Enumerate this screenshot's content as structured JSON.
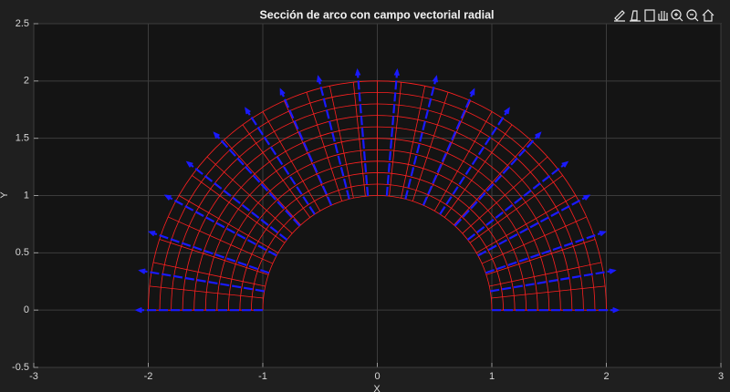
{
  "chart_data": {
    "type": "polar-mesh-quiver",
    "title": "Sección de arco con campo vectorial radial",
    "xlabel": "X",
    "ylabel": "Y",
    "xlim": [
      -3,
      3
    ],
    "ylim": [
      -0.5,
      2.5
    ],
    "xticks": [
      -3,
      -2,
      -1,
      0,
      1,
      2,
      3
    ],
    "yticks": [
      -0.5,
      0,
      0.5,
      1,
      1.5,
      2,
      2.5
    ],
    "grid": true,
    "mesh": {
      "r_min": 1,
      "r_max": 2,
      "r_count": 11,
      "theta_count": 31,
      "color": "#ff2020"
    },
    "quiver": {
      "count": 20,
      "r_start": 1,
      "r_end": 2.1,
      "color": "#1a1aff"
    }
  }
}
